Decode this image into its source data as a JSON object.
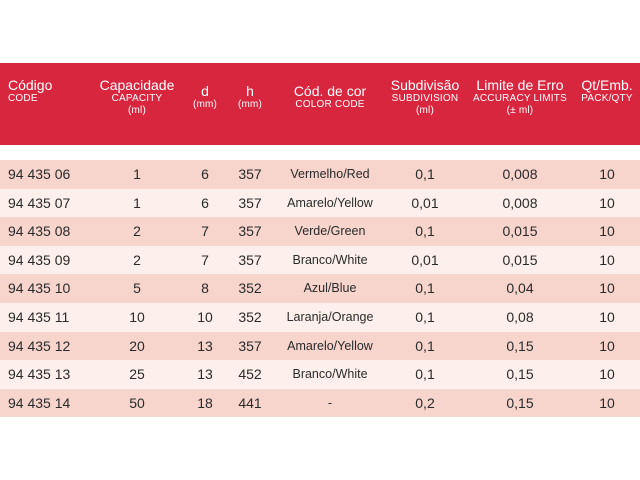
{
  "header": {
    "codigo": {
      "main": "Código",
      "sub": "CODE"
    },
    "capacidade": {
      "main": "Capacidade",
      "sub": "CAPACITY",
      "unit": "(ml)"
    },
    "d": {
      "main": "d",
      "unit": "(mm)"
    },
    "h": {
      "main": "h",
      "unit": "(mm)"
    },
    "cor": {
      "main": "Cód. de cor",
      "sub": "COLOR CODE"
    },
    "subdivisao": {
      "main": "Subdivisão",
      "sub": "SUBDIVISION",
      "unit": "(ml)"
    },
    "limite": {
      "main": "Limite de Erro",
      "sub": "ACCURACY LIMITS",
      "unit": "(± ml)"
    },
    "qt": {
      "main": "Qt/Emb.",
      "sub": "PACK/QTY"
    }
  },
  "rows": [
    {
      "code": "94 435 06",
      "capacity": "1",
      "d": "6",
      "h": "357",
      "color": "Vermelho/Red",
      "subdivision": "0,1",
      "limit": "0,008",
      "qty": "10"
    },
    {
      "code": "94 435 07",
      "capacity": "1",
      "d": "6",
      "h": "357",
      "color": "Amarelo/Yellow",
      "subdivision": "0,01",
      "limit": "0,008",
      "qty": "10"
    },
    {
      "code": "94 435 08",
      "capacity": "2",
      "d": "7",
      "h": "357",
      "color": "Verde/Green",
      "subdivision": "0,1",
      "limit": "0,015",
      "qty": "10"
    },
    {
      "code": "94 435 09",
      "capacity": "2",
      "d": "7",
      "h": "357",
      "color": "Branco/White",
      "subdivision": "0,01",
      "limit": "0,015",
      "qty": "10"
    },
    {
      "code": "94 435 10",
      "capacity": "5",
      "d": "8",
      "h": "352",
      "color": "Azul/Blue",
      "subdivision": "0,1",
      "limit": "0,04",
      "qty": "10"
    },
    {
      "code": "94 435 11",
      "capacity": "10",
      "d": "10",
      "h": "352",
      "color": "Laranja/Orange",
      "subdivision": "0,1",
      "limit": "0,08",
      "qty": "10"
    },
    {
      "code": "94 435 12",
      "capacity": "20",
      "d": "13",
      "h": "357",
      "color": "Amarelo/Yellow",
      "subdivision": "0,1",
      "limit": "0,15",
      "qty": "10"
    },
    {
      "code": "94 435 13",
      "capacity": "25",
      "d": "13",
      "h": "452",
      "color": "Branco/White",
      "subdivision": "0,1",
      "limit": "0,15",
      "qty": "10"
    },
    {
      "code": "94 435 14",
      "capacity": "50",
      "d": "18",
      "h": "441",
      "color": "-",
      "subdivision": "0,2",
      "limit": "0,15",
      "qty": "10"
    }
  ],
  "colors": {
    "header_bg": "#d9263f",
    "row_odd": "#f7d5cc",
    "row_even": "#fdf0ec"
  }
}
